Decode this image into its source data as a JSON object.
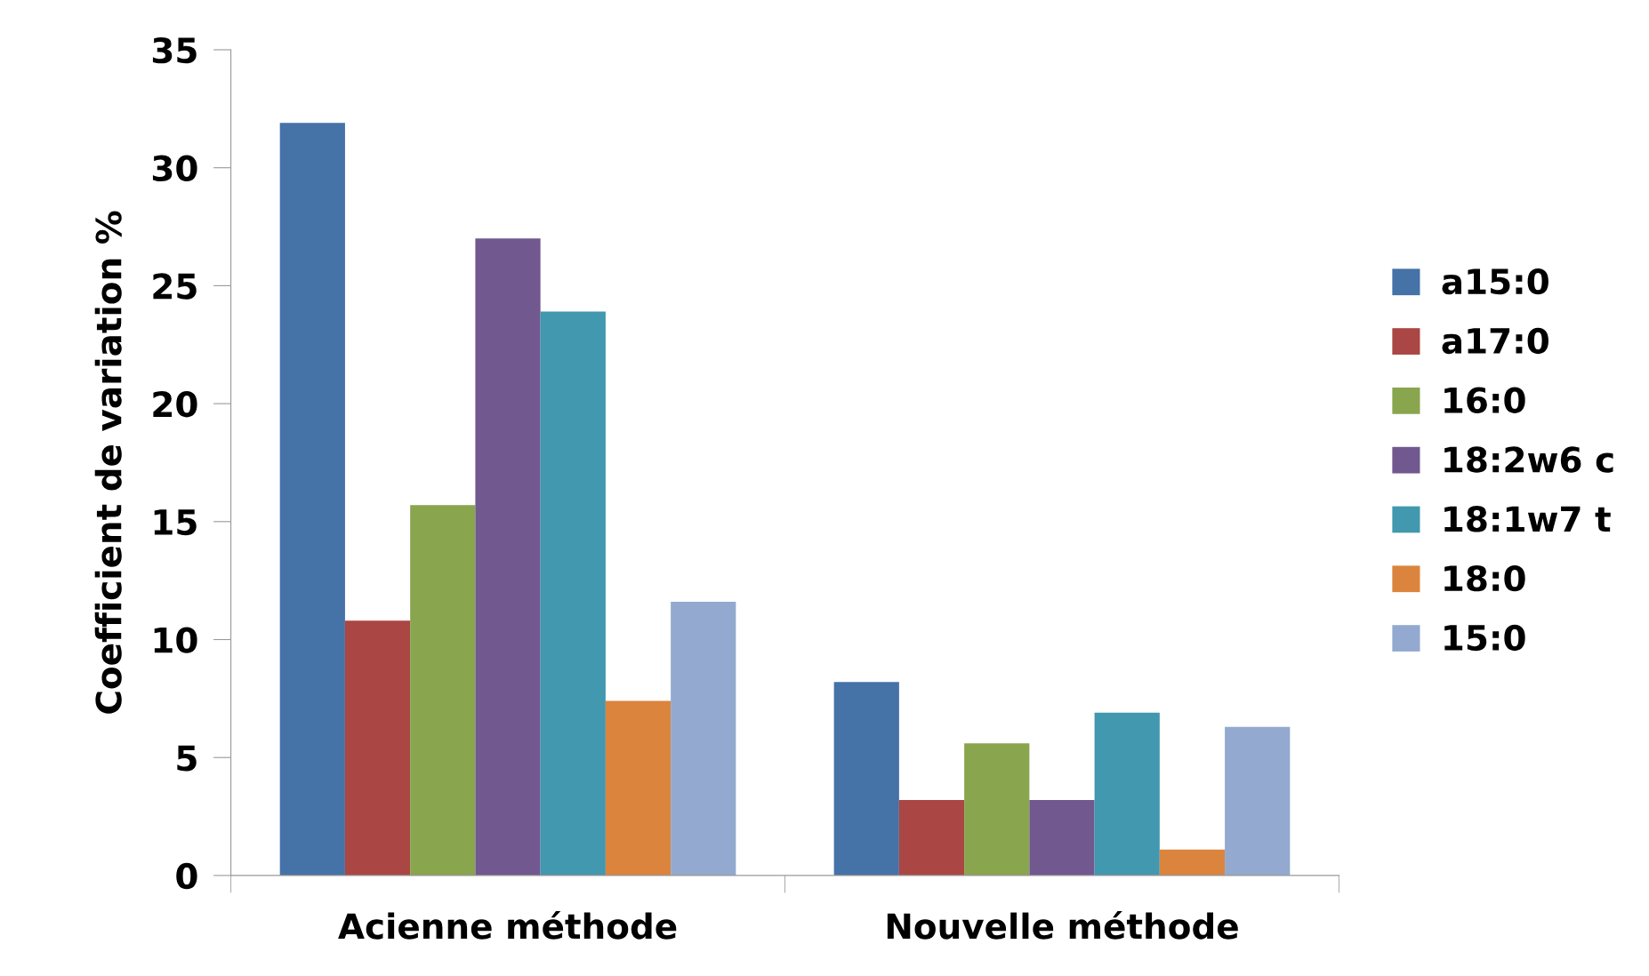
{
  "chart_data": {
    "type": "bar",
    "ylabel": "Coefficient de variation %",
    "categories": [
      "Acienne méthode",
      "Nouvelle méthode"
    ],
    "series": [
      {
        "name": "a15:0",
        "color": "#4572a7",
        "values": [
          31.9,
          8.2
        ]
      },
      {
        "name": "a17:0",
        "color": "#aa4643",
        "values": [
          10.8,
          3.2
        ]
      },
      {
        "name": "16:0",
        "color": "#89a54e",
        "values": [
          15.7,
          5.6
        ]
      },
      {
        "name": "18:2w6 c",
        "color": "#71588f",
        "values": [
          27.0,
          3.2
        ]
      },
      {
        "name": "18:1w7 t",
        "color": "#4198af",
        "values": [
          23.9,
          6.9
        ]
      },
      {
        "name": "18:0",
        "color": "#db843d",
        "values": [
          7.4,
          1.1
        ]
      },
      {
        "name": "15:0",
        "color": "#93a9cf",
        "values": [
          11.6,
          6.3
        ]
      }
    ],
    "ylim": [
      0,
      35
    ],
    "yticks": [
      0,
      5,
      10,
      15,
      20,
      25,
      30,
      35
    ],
    "grid": false,
    "legend": "right"
  }
}
